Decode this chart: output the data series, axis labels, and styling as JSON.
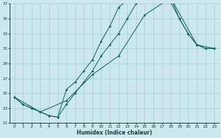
{
  "xlabel": "Humidex (Indice chaleur)",
  "bg_color": "#cce8ec",
  "line_color": "#1a6b60",
  "grid_color": "#9fcdd4",
  "xlim": [
    -0.5,
    23.5
  ],
  "ylim": [
    21,
    37
  ],
  "xticks": [
    0,
    1,
    2,
    3,
    4,
    5,
    6,
    7,
    8,
    9,
    10,
    11,
    12,
    13,
    14,
    15,
    16,
    17,
    18,
    19,
    20,
    21,
    22,
    23
  ],
  "yticks": [
    21,
    23,
    25,
    27,
    29,
    31,
    33,
    35,
    37
  ],
  "curve1_x": [
    0,
    1,
    2,
    3,
    4,
    5,
    6,
    7,
    8,
    9,
    10,
    11,
    12,
    13,
    14,
    15,
    16,
    17,
    18,
    19,
    20,
    21,
    22,
    23
  ],
  "curve1_y": [
    24.5,
    23.5,
    23.0,
    22.5,
    22.0,
    21.8,
    25.5,
    26.5,
    28.0,
    29.5,
    32.0,
    34.0,
    36.5,
    37.5,
    38.0,
    37.8,
    37.2,
    37.2,
    37.2,
    35.0,
    33.0,
    31.5,
    31.0,
    31.0
  ],
  "curve2_x": [
    0,
    1,
    2,
    3,
    4,
    5,
    6,
    7,
    8,
    9,
    10,
    11,
    12,
    13,
    14,
    15,
    16,
    17,
    18,
    19,
    20,
    21,
    22,
    23
  ],
  "curve2_y": [
    24.5,
    23.5,
    23.0,
    22.5,
    22.0,
    21.8,
    23.5,
    25.0,
    26.5,
    28.0,
    30.0,
    31.5,
    33.0,
    35.0,
    37.0,
    38.0,
    37.2,
    37.5,
    37.8,
    35.0,
    33.0,
    31.5,
    31.0,
    31.0
  ],
  "curve3_x": [
    0,
    3,
    6,
    9,
    12,
    15,
    18,
    21,
    23
  ],
  "curve3_y": [
    24.5,
    22.5,
    24.0,
    27.5,
    30.0,
    35.5,
    37.8,
    31.5,
    31.0
  ]
}
